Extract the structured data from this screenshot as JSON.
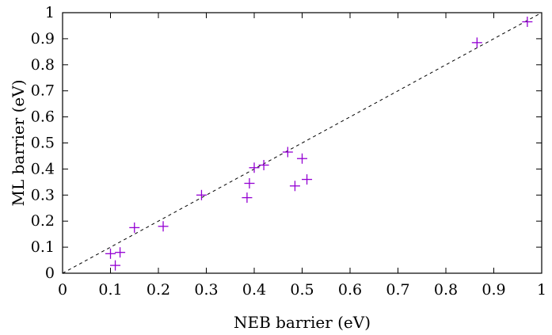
{
  "chart_data": {
    "type": "scatter",
    "title": "",
    "xlabel": "NEB barrier (eV)",
    "ylabel": "ML barrier (eV)",
    "xlim": [
      0,
      1
    ],
    "ylim": [
      0,
      1
    ],
    "grid": false,
    "xticks": [
      "0",
      "0.1",
      "0.2",
      "0.3",
      "0.4",
      "0.5",
      "0.6",
      "0.7",
      "0.8",
      "0.9",
      "1"
    ],
    "yticks": [
      "0",
      "0.1",
      "0.2",
      "0.3",
      "0.4",
      "0.5",
      "0.6",
      "0.7",
      "0.8",
      "0.9",
      "1"
    ],
    "reference_line": {
      "style": "dashed",
      "color": "#000000",
      "from": [
        0,
        0
      ],
      "to": [
        1,
        1
      ]
    },
    "series": [
      {
        "marker": "plus",
        "color": "#9400d3",
        "points": [
          {
            "x": 0.1,
            "y": 0.075
          },
          {
            "x": 0.12,
            "y": 0.08
          },
          {
            "x": 0.11,
            "y": 0.03
          },
          {
            "x": 0.15,
            "y": 0.175
          },
          {
            "x": 0.21,
            "y": 0.18
          },
          {
            "x": 0.29,
            "y": 0.3
          },
          {
            "x": 0.385,
            "y": 0.29
          },
          {
            "x": 0.39,
            "y": 0.345
          },
          {
            "x": 0.4,
            "y": 0.405
          },
          {
            "x": 0.42,
            "y": 0.415
          },
          {
            "x": 0.47,
            "y": 0.465
          },
          {
            "x": 0.485,
            "y": 0.335
          },
          {
            "x": 0.5,
            "y": 0.44
          },
          {
            "x": 0.51,
            "y": 0.36
          },
          {
            "x": 0.865,
            "y": 0.885
          },
          {
            "x": 0.97,
            "y": 0.965
          }
        ]
      }
    ]
  }
}
